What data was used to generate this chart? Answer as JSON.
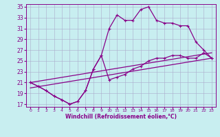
{
  "bg_color": "#c8eef0",
  "grid_color": "#aaaacc",
  "line_color": "#880088",
  "xlim": [
    -0.5,
    23.5
  ],
  "ylim": [
    16.5,
    35.5
  ],
  "xticks": [
    0,
    1,
    2,
    3,
    4,
    5,
    6,
    7,
    8,
    9,
    10,
    11,
    12,
    13,
    14,
    15,
    16,
    17,
    18,
    19,
    20,
    21,
    22,
    23
  ],
  "yticks": [
    17,
    19,
    21,
    23,
    25,
    27,
    29,
    31,
    33,
    35
  ],
  "xlabel": "Windchill (Refroidissement éolien,°C)",
  "curve1_x": [
    0,
    1,
    2,
    3,
    4,
    5,
    6,
    7,
    8,
    9,
    10,
    11,
    12,
    13,
    14,
    15,
    16,
    17,
    18,
    19,
    20,
    21,
    22,
    23
  ],
  "curve1_y": [
    21.0,
    20.3,
    19.5,
    18.5,
    17.8,
    17.0,
    17.5,
    19.5,
    23.5,
    26.0,
    31.0,
    33.5,
    32.5,
    32.5,
    34.5,
    35.0,
    32.5,
    32.0,
    32.0,
    31.5,
    31.5,
    28.5,
    27.0,
    25.5
  ],
  "line1_x": [
    0,
    23
  ],
  "line1_y": [
    21.0,
    26.5
  ],
  "line2_x": [
    0,
    23
  ],
  "line2_y": [
    20.0,
    25.5
  ],
  "curve2_x": [
    0,
    1,
    2,
    3,
    4,
    5,
    6,
    7,
    8,
    9,
    10,
    11,
    12,
    13,
    14,
    15,
    16,
    17,
    18,
    19,
    20,
    21,
    22,
    23
  ],
  "curve2_y": [
    21.0,
    20.3,
    19.5,
    18.5,
    17.8,
    17.0,
    17.5,
    19.5,
    23.5,
    26.0,
    21.5,
    22.0,
    22.5,
    23.5,
    24.0,
    25.0,
    25.5,
    25.5,
    26.0,
    26.0,
    25.5,
    25.5,
    26.5,
    25.5
  ]
}
